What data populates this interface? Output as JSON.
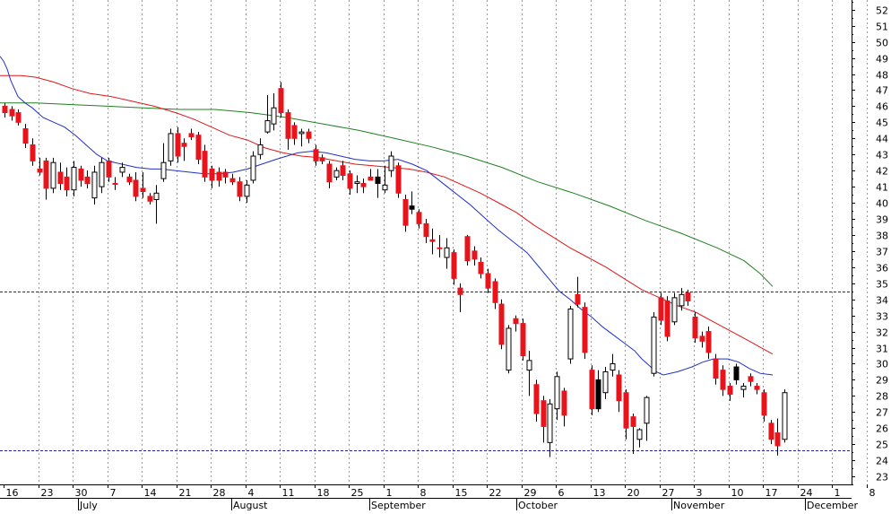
{
  "chart_data": {
    "type": "candlestick",
    "title": "",
    "xlabel": "",
    "ylabel": "",
    "ylim": [
      22.5,
      52.6
    ],
    "y_ticks": [
      23,
      24,
      25,
      26,
      27,
      28,
      29,
      30,
      31,
      32,
      33,
      34,
      35,
      36,
      37,
      38,
      39,
      40,
      41,
      42,
      43,
      44,
      45,
      46,
      47,
      48,
      49,
      50,
      51,
      52
    ],
    "x_day_ticks": [
      "16",
      "23",
      "30",
      "7",
      "14",
      "21",
      "28",
      "4",
      "11",
      "18",
      "25",
      "1",
      "8",
      "15",
      "22",
      "29",
      "6",
      "13",
      "20",
      "27",
      "3",
      "10",
      "17",
      "24",
      "1",
      "8"
    ],
    "x_month_labels": [
      "July",
      "August",
      "September",
      "October",
      "November",
      "December"
    ],
    "reference_lines": [
      34.5,
      24.6
    ],
    "grid": "vertical dotted at weekly ticks",
    "colors": {
      "up": "#ffffff",
      "down": "#e8141c",
      "down_alt": "#000000",
      "ma_short": "#2030c8",
      "ma_mid": "#e01818",
      "ma_long": "#208020",
      "reference": "#2020a0"
    },
    "candles": [
      {
        "o": 46.0,
        "h": 46.2,
        "l": 45.3,
        "c": 45.6,
        "d": "dn"
      },
      {
        "o": 45.8,
        "h": 46.0,
        "l": 45.1,
        "c": 45.4,
        "d": "dn"
      },
      {
        "o": 45.6,
        "h": 45.8,
        "l": 44.8,
        "c": 45.0,
        "d": "dn"
      },
      {
        "o": 44.6,
        "h": 44.9,
        "l": 43.4,
        "c": 43.7,
        "d": "dn"
      },
      {
        "o": 43.6,
        "h": 44.0,
        "l": 42.3,
        "c": 42.6,
        "d": "dn"
      },
      {
        "o": 42.1,
        "h": 42.8,
        "l": 41.7,
        "c": 41.9,
        "d": "dn"
      },
      {
        "o": 42.6,
        "h": 42.8,
        "l": 40.2,
        "c": 40.9,
        "d": "dn"
      },
      {
        "o": 40.9,
        "h": 42.8,
        "l": 40.6,
        "c": 42.5,
        "d": "up"
      },
      {
        "o": 41.9,
        "h": 42.5,
        "l": 40.8,
        "c": 41.2,
        "d": "dn"
      },
      {
        "o": 41.6,
        "h": 42.2,
        "l": 40.4,
        "c": 40.8,
        "d": "dn"
      },
      {
        "o": 40.8,
        "h": 42.6,
        "l": 40.4,
        "c": 42.2,
        "d": "up"
      },
      {
        "o": 42.1,
        "h": 42.3,
        "l": 41.0,
        "c": 41.4,
        "d": "dn"
      },
      {
        "o": 41.6,
        "h": 42.0,
        "l": 40.9,
        "c": 41.2,
        "d": "dn"
      },
      {
        "o": 40.3,
        "h": 42.3,
        "l": 39.9,
        "c": 41.9,
        "d": "up"
      },
      {
        "o": 41.0,
        "h": 42.8,
        "l": 40.6,
        "c": 42.5,
        "d": "up"
      },
      {
        "o": 42.6,
        "h": 42.8,
        "l": 41.3,
        "c": 41.6,
        "d": "dn"
      },
      {
        "o": 41.2,
        "h": 41.6,
        "l": 40.8,
        "c": 41.2,
        "d": "dn"
      },
      {
        "o": 41.9,
        "h": 42.5,
        "l": 41.6,
        "c": 42.2,
        "d": "up"
      },
      {
        "o": 41.6,
        "h": 41.8,
        "l": 41.1,
        "c": 41.3,
        "d": "dn"
      },
      {
        "o": 41.4,
        "h": 41.9,
        "l": 40.1,
        "c": 40.4,
        "d": "dn"
      },
      {
        "o": 40.7,
        "h": 41.9,
        "l": 40.3,
        "c": 40.9,
        "d": "dn"
      },
      {
        "o": 40.4,
        "h": 40.6,
        "l": 39.9,
        "c": 40.1,
        "d": "dn"
      },
      {
        "o": 40.2,
        "h": 41.1,
        "l": 38.7,
        "c": 40.6,
        "d": "up"
      },
      {
        "o": 41.5,
        "h": 43.7,
        "l": 41.3,
        "c": 42.5,
        "d": "up"
      },
      {
        "o": 42.6,
        "h": 44.6,
        "l": 42.3,
        "c": 44.3,
        "d": "up"
      },
      {
        "o": 44.3,
        "h": 44.7,
        "l": 42.5,
        "c": 42.9,
        "d": "dn"
      },
      {
        "o": 43.7,
        "h": 44.0,
        "l": 42.6,
        "c": 43.5,
        "d": "dn"
      },
      {
        "o": 44.3,
        "h": 44.6,
        "l": 43.9,
        "c": 44.1,
        "d": "dn"
      },
      {
        "o": 44.2,
        "h": 44.4,
        "l": 42.4,
        "c": 42.7,
        "d": "dn"
      },
      {
        "o": 43.2,
        "h": 43.6,
        "l": 41.3,
        "c": 41.6,
        "d": "dn"
      },
      {
        "o": 42.1,
        "h": 42.3,
        "l": 40.9,
        "c": 41.4,
        "d": "dn"
      },
      {
        "o": 41.9,
        "h": 42.2,
        "l": 41.0,
        "c": 41.4,
        "d": "dn"
      },
      {
        "o": 41.9,
        "h": 42.1,
        "l": 41.2,
        "c": 41.6,
        "d": "dn"
      },
      {
        "o": 41.5,
        "h": 41.8,
        "l": 41.1,
        "c": 41.3,
        "d": "dn"
      },
      {
        "o": 41.3,
        "h": 41.6,
        "l": 40.1,
        "c": 40.4,
        "d": "dn"
      },
      {
        "o": 40.4,
        "h": 41.4,
        "l": 40.0,
        "c": 41.1,
        "d": "up"
      },
      {
        "o": 41.4,
        "h": 43.2,
        "l": 41.2,
        "c": 42.9,
        "d": "up"
      },
      {
        "o": 43.0,
        "h": 44.0,
        "l": 42.7,
        "c": 43.6,
        "d": "up"
      },
      {
        "o": 44.4,
        "h": 46.7,
        "l": 44.3,
        "c": 45.1,
        "d": "up"
      },
      {
        "o": 44.9,
        "h": 46.8,
        "l": 44.5,
        "c": 45.9,
        "d": "up"
      },
      {
        "o": 47.1,
        "h": 47.5,
        "l": 45.3,
        "c": 45.6,
        "d": "dn"
      },
      {
        "o": 45.6,
        "h": 45.8,
        "l": 43.3,
        "c": 44.0,
        "d": "dn"
      },
      {
        "o": 44.8,
        "h": 45.0,
        "l": 43.6,
        "c": 44.0,
        "d": "dn"
      },
      {
        "o": 44.4,
        "h": 44.6,
        "l": 43.5,
        "c": 44.3,
        "d": "up"
      },
      {
        "o": 44.4,
        "h": 44.6,
        "l": 43.7,
        "c": 44.0,
        "d": "dn"
      },
      {
        "o": 43.3,
        "h": 43.6,
        "l": 42.3,
        "c": 42.6,
        "d": "dn"
      },
      {
        "o": 42.8,
        "h": 43.0,
        "l": 42.4,
        "c": 42.6,
        "d": "dn"
      },
      {
        "o": 42.4,
        "h": 42.6,
        "l": 40.9,
        "c": 41.3,
        "d": "dn"
      },
      {
        "o": 41.6,
        "h": 42.2,
        "l": 41.4,
        "c": 42.0,
        "d": "up"
      },
      {
        "o": 42.3,
        "h": 42.6,
        "l": 41.4,
        "c": 41.7,
        "d": "dn"
      },
      {
        "o": 41.8,
        "h": 42.0,
        "l": 40.5,
        "c": 40.9,
        "d": "dn"
      },
      {
        "o": 41.3,
        "h": 41.7,
        "l": 40.6,
        "c": 41.2,
        "d": "up"
      },
      {
        "o": 41.2,
        "h": 41.5,
        "l": 40.6,
        "c": 41.0,
        "d": "dn"
      },
      {
        "o": 41.6,
        "h": 42.1,
        "l": 41.4,
        "c": 41.4,
        "d": "dn"
      },
      {
        "o": 41.6,
        "h": 42.1,
        "l": 40.3,
        "c": 41.2,
        "d": "alt"
      },
      {
        "o": 40.8,
        "h": 42.3,
        "l": 40.6,
        "c": 41.1,
        "d": "up"
      },
      {
        "o": 42.0,
        "h": 43.2,
        "l": 41.6,
        "c": 42.9,
        "d": "up"
      },
      {
        "o": 42.3,
        "h": 42.5,
        "l": 40.3,
        "c": 40.6,
        "d": "dn"
      },
      {
        "o": 40.2,
        "h": 40.5,
        "l": 38.2,
        "c": 38.6,
        "d": "dn"
      },
      {
        "o": 39.8,
        "h": 40.7,
        "l": 39.3,
        "c": 39.6,
        "d": "alt"
      },
      {
        "o": 39.4,
        "h": 39.6,
        "l": 38.4,
        "c": 38.7,
        "d": "dn"
      },
      {
        "o": 38.7,
        "h": 39.0,
        "l": 37.5,
        "c": 37.9,
        "d": "dn"
      },
      {
        "o": 37.6,
        "h": 38.4,
        "l": 36.8,
        "c": 37.7,
        "d": "dn"
      },
      {
        "o": 37.2,
        "h": 38.0,
        "l": 36.6,
        "c": 37.2,
        "d": "dn"
      },
      {
        "o": 36.6,
        "h": 37.8,
        "l": 35.9,
        "c": 37.2,
        "d": "up"
      },
      {
        "o": 36.9,
        "h": 37.1,
        "l": 34.9,
        "c": 35.3,
        "d": "dn"
      },
      {
        "o": 34.7,
        "h": 35.0,
        "l": 33.2,
        "c": 34.3,
        "d": "dn"
      },
      {
        "o": 37.9,
        "h": 38.0,
        "l": 36.1,
        "c": 36.4,
        "d": "dn"
      },
      {
        "o": 37.0,
        "h": 37.3,
        "l": 36.1,
        "c": 36.5,
        "d": "dn"
      },
      {
        "o": 36.3,
        "h": 36.6,
        "l": 35.3,
        "c": 35.6,
        "d": "dn"
      },
      {
        "o": 35.6,
        "h": 35.9,
        "l": 34.4,
        "c": 34.7,
        "d": "dn"
      },
      {
        "o": 35.1,
        "h": 35.3,
        "l": 33.4,
        "c": 33.8,
        "d": "dn"
      },
      {
        "o": 33.7,
        "h": 34.0,
        "l": 30.9,
        "c": 31.2,
        "d": "dn"
      },
      {
        "o": 29.6,
        "h": 32.4,
        "l": 29.4,
        "c": 32.2,
        "d": "up"
      },
      {
        "o": 32.8,
        "h": 33.0,
        "l": 32.0,
        "c": 32.5,
        "d": "dn"
      },
      {
        "o": 32.5,
        "h": 32.8,
        "l": 30.2,
        "c": 30.5,
        "d": "dn"
      },
      {
        "o": 29.6,
        "h": 30.8,
        "l": 28.0,
        "c": 30.2,
        "d": "up"
      },
      {
        "o": 28.7,
        "h": 29.0,
        "l": 26.4,
        "c": 26.9,
        "d": "dn"
      },
      {
        "o": 27.7,
        "h": 28.0,
        "l": 25.1,
        "c": 26.1,
        "d": "dn"
      },
      {
        "o": 25.1,
        "h": 27.8,
        "l": 24.2,
        "c": 27.5,
        "d": "up"
      },
      {
        "o": 27.2,
        "h": 29.5,
        "l": 26.5,
        "c": 29.2,
        "d": "up"
      },
      {
        "o": 28.3,
        "h": 28.5,
        "l": 26.1,
        "c": 26.8,
        "d": "dn"
      },
      {
        "o": 30.3,
        "h": 33.6,
        "l": 30.0,
        "c": 33.4,
        "d": "up"
      },
      {
        "o": 34.3,
        "h": 35.4,
        "l": 33.5,
        "c": 33.7,
        "d": "dn"
      },
      {
        "o": 33.5,
        "h": 33.8,
        "l": 30.3,
        "c": 30.7,
        "d": "dn"
      },
      {
        "o": 29.6,
        "h": 29.9,
        "l": 26.8,
        "c": 27.2,
        "d": "dn"
      },
      {
        "o": 29.0,
        "h": 29.6,
        "l": 27.0,
        "c": 27.2,
        "d": "alt"
      },
      {
        "o": 28.2,
        "h": 29.8,
        "l": 27.8,
        "c": 29.5,
        "d": "up"
      },
      {
        "o": 30.0,
        "h": 30.6,
        "l": 29.2,
        "c": 29.6,
        "d": "up"
      },
      {
        "o": 29.3,
        "h": 29.6,
        "l": 27.0,
        "c": 27.7,
        "d": "dn"
      },
      {
        "o": 28.2,
        "h": 28.4,
        "l": 25.3,
        "c": 26.0,
        "d": "dn"
      },
      {
        "o": 26.7,
        "h": 26.9,
        "l": 24.4,
        "c": 26.1,
        "d": "dn"
      },
      {
        "o": 25.3,
        "h": 26.0,
        "l": 24.8,
        "c": 25.9,
        "d": "up"
      },
      {
        "o": 26.3,
        "h": 28.0,
        "l": 25.2,
        "c": 27.9,
        "d": "up"
      },
      {
        "o": 29.4,
        "h": 33.2,
        "l": 29.2,
        "c": 32.9,
        "d": "up"
      },
      {
        "o": 34.1,
        "h": 34.4,
        "l": 32.4,
        "c": 32.7,
        "d": "dn"
      },
      {
        "o": 33.9,
        "h": 34.2,
        "l": 31.4,
        "c": 31.7,
        "d": "dn"
      },
      {
        "o": 32.6,
        "h": 34.4,
        "l": 32.4,
        "c": 34.1,
        "d": "up"
      },
      {
        "o": 33.6,
        "h": 34.7,
        "l": 33.3,
        "c": 34.3,
        "d": "up"
      },
      {
        "o": 34.4,
        "h": 34.6,
        "l": 33.6,
        "c": 33.9,
        "d": "dn"
      },
      {
        "o": 32.9,
        "h": 33.2,
        "l": 31.3,
        "c": 31.6,
        "d": "dn"
      },
      {
        "o": 31.7,
        "h": 32.0,
        "l": 31.0,
        "c": 31.4,
        "d": "dn"
      },
      {
        "o": 32.0,
        "h": 32.3,
        "l": 30.3,
        "c": 30.7,
        "d": "dn"
      },
      {
        "o": 30.3,
        "h": 30.6,
        "l": 28.7,
        "c": 29.1,
        "d": "dn"
      },
      {
        "o": 29.6,
        "h": 29.9,
        "l": 28.0,
        "c": 28.4,
        "d": "dn"
      },
      {
        "o": 28.6,
        "h": 28.8,
        "l": 27.7,
        "c": 28.1,
        "d": "dn"
      },
      {
        "o": 29.8,
        "h": 30.0,
        "l": 28.7,
        "c": 29.0,
        "d": "alt"
      },
      {
        "o": 28.4,
        "h": 28.8,
        "l": 27.9,
        "c": 28.6,
        "d": "up"
      },
      {
        "o": 29.2,
        "h": 29.4,
        "l": 28.6,
        "c": 28.9,
        "d": "dn"
      },
      {
        "o": 28.6,
        "h": 28.8,
        "l": 28.1,
        "c": 28.4,
        "d": "dn"
      },
      {
        "o": 28.2,
        "h": 28.4,
        "l": 26.4,
        "c": 26.8,
        "d": "dn"
      },
      {
        "o": 26.3,
        "h": 26.5,
        "l": 25.0,
        "c": 25.3,
        "d": "dn"
      },
      {
        "o": 25.7,
        "h": 26.6,
        "l": 24.3,
        "c": 24.9,
        "d": "dn"
      },
      {
        "o": 25.3,
        "h": 28.4,
        "l": 25.1,
        "c": 28.2,
        "d": "up"
      }
    ],
    "ma_short": [
      [
        0,
        49.1
      ],
      [
        4,
        48.8
      ],
      [
        8,
        48.3
      ],
      [
        12,
        47.6
      ],
      [
        20,
        46.6
      ],
      [
        28,
        46.2
      ],
      [
        36,
        45.9
      ],
      [
        48,
        45.3
      ],
      [
        60,
        45.0
      ],
      [
        72,
        44.7
      ],
      [
        84,
        44.2
      ],
      [
        96,
        43.6
      ],
      [
        108,
        43.0
      ],
      [
        120,
        42.6
      ],
      [
        136,
        42.4
      ],
      [
        152,
        42.2
      ],
      [
        168,
        42.1
      ],
      [
        180,
        42.1
      ],
      [
        196,
        42.0
      ],
      [
        212,
        41.9
      ],
      [
        228,
        41.8
      ],
      [
        244,
        41.8
      ],
      [
        260,
        41.9
      ],
      [
        276,
        42.1
      ],
      [
        292,
        42.4
      ],
      [
        308,
        42.7
      ],
      [
        320,
        42.9
      ],
      [
        332,
        43.1
      ],
      [
        348,
        43.2
      ],
      [
        364,
        43.1
      ],
      [
        380,
        42.9
      ],
      [
        396,
        42.7
      ],
      [
        412,
        42.6
      ],
      [
        428,
        42.6
      ],
      [
        444,
        42.7
      ],
      [
        460,
        42.4
      ],
      [
        476,
        42.0
      ],
      [
        492,
        41.3
      ],
      [
        508,
        40.6
      ],
      [
        524,
        39.9
      ],
      [
        540,
        39.1
      ],
      [
        556,
        38.3
      ],
      [
        572,
        37.6
      ],
      [
        588,
        36.9
      ],
      [
        600,
        36.1
      ],
      [
        612,
        35.3
      ],
      [
        624,
        34.5
      ],
      [
        636,
        34.0
      ],
      [
        648,
        33.4
      ],
      [
        660,
        32.9
      ],
      [
        672,
        32.3
      ],
      [
        684,
        31.8
      ],
      [
        696,
        31.3
      ],
      [
        708,
        30.8
      ],
      [
        716,
        30.3
      ],
      [
        724,
        29.9
      ],
      [
        732,
        29.5
      ],
      [
        740,
        29.3
      ],
      [
        756,
        29.5
      ],
      [
        772,
        29.8
      ],
      [
        784,
        30.1
      ],
      [
        796,
        30.3
      ],
      [
        812,
        30.3
      ],
      [
        824,
        30.1
      ],
      [
        836,
        29.7
      ],
      [
        848,
        29.4
      ],
      [
        862,
        29.3
      ]
    ],
    "ma_mid": [
      [
        0,
        47.9
      ],
      [
        12,
        47.9
      ],
      [
        24,
        47.9
      ],
      [
        40,
        47.8
      ],
      [
        60,
        47.5
      ],
      [
        80,
        47.1
      ],
      [
        100,
        46.8
      ],
      [
        124,
        46.6
      ],
      [
        148,
        46.3
      ],
      [
        172,
        46.0
      ],
      [
        196,
        45.6
      ],
      [
        216,
        45.2
      ],
      [
        236,
        44.7
      ],
      [
        256,
        44.2
      ],
      [
        276,
        43.9
      ],
      [
        296,
        43.4
      ],
      [
        316,
        43.1
      ],
      [
        336,
        42.9
      ],
      [
        356,
        42.8
      ],
      [
        376,
        42.6
      ],
      [
        396,
        42.4
      ],
      [
        416,
        42.3
      ],
      [
        436,
        42.2
      ],
      [
        456,
        42.1
      ],
      [
        476,
        41.9
      ],
      [
        496,
        41.6
      ],
      [
        516,
        41.1
      ],
      [
        536,
        40.6
      ],
      [
        556,
        40.0
      ],
      [
        576,
        39.4
      ],
      [
        596,
        38.6
      ],
      [
        616,
        37.9
      ],
      [
        636,
        37.2
      ],
      [
        656,
        36.6
      ],
      [
        676,
        36.0
      ],
      [
        696,
        35.3
      ],
      [
        716,
        34.6
      ],
      [
        736,
        34.1
      ],
      [
        756,
        33.6
      ],
      [
        776,
        33.2
      ],
      [
        796,
        32.6
      ],
      [
        816,
        32.0
      ],
      [
        836,
        31.4
      ],
      [
        852,
        30.9
      ],
      [
        862,
        30.6
      ]
    ],
    "ma_long": [
      [
        0,
        46.2
      ],
      [
        40,
        46.2
      ],
      [
        80,
        46.1
      ],
      [
        120,
        46.0
      ],
      [
        160,
        45.9
      ],
      [
        200,
        45.8
      ],
      [
        240,
        45.8
      ],
      [
        280,
        45.6
      ],
      [
        320,
        45.3
      ],
      [
        360,
        44.9
      ],
      [
        400,
        44.5
      ],
      [
        440,
        44.0
      ],
      [
        480,
        43.5
      ],
      [
        520,
        42.9
      ],
      [
        560,
        42.2
      ],
      [
        600,
        41.3
      ],
      [
        640,
        40.6
      ],
      [
        680,
        39.8
      ],
      [
        720,
        38.9
      ],
      [
        760,
        38.1
      ],
      [
        800,
        37.2
      ],
      [
        830,
        36.4
      ],
      [
        848,
        35.6
      ],
      [
        862,
        34.8
      ]
    ]
  }
}
